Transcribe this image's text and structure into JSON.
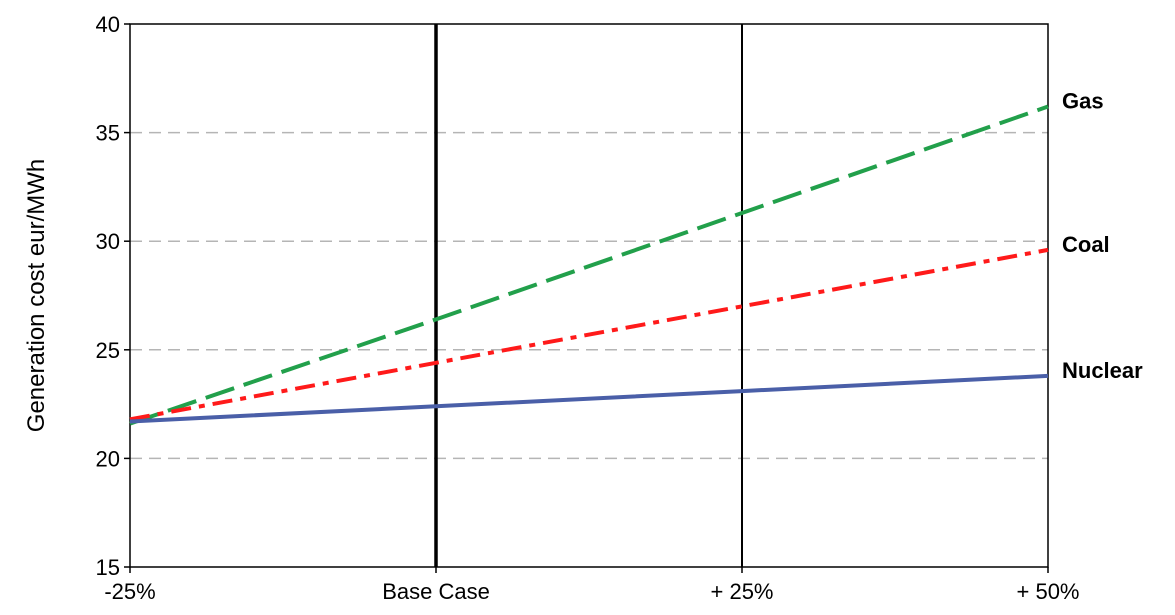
{
  "chart_data": {
    "type": "line",
    "title": "",
    "xlabel": "",
    "ylabel": "Generation cost eur/MWh",
    "categories": [
      "-25%",
      "Base Case",
      "+ 25%",
      "+ 50%"
    ],
    "ylim": [
      15,
      40
    ],
    "yticks": [
      "15",
      "20",
      "25",
      "30",
      "35",
      "40"
    ],
    "grid": "horizontal dashed",
    "legend": "inline labels at right end of lines",
    "series": [
      {
        "name": "Gas",
        "values": [
          21.6,
          26.4,
          31.3,
          36.2
        ],
        "color": "#22a04b",
        "style": "dashed"
      },
      {
        "name": "Coal",
        "values": [
          21.8,
          24.4,
          27.0,
          29.6
        ],
        "color": "#ff1a1a",
        "style": "dash-dot"
      },
      {
        "name": "Nuclear",
        "values": [
          21.7,
          22.4,
          23.1,
          23.8
        ],
        "color": "#4a5fa8",
        "style": "solid"
      }
    ]
  }
}
